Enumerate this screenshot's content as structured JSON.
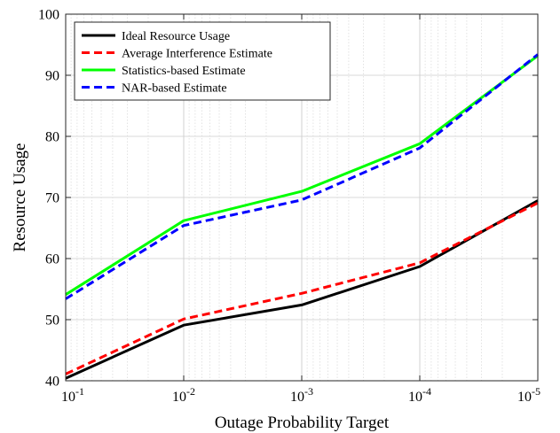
{
  "chart_data": {
    "type": "line",
    "title": "",
    "xlabel": "Outage Probability Target",
    "ylabel": "Resource Usage",
    "x_scale": "log-reversed",
    "x": [
      0.1,
      0.01,
      0.001,
      0.0001,
      1e-05
    ],
    "x_tick_labels": [
      {
        "base": "10",
        "exp": "-1"
      },
      {
        "base": "10",
        "exp": "-2"
      },
      {
        "base": "10",
        "exp": "-3"
      },
      {
        "base": "10",
        "exp": "-4"
      },
      {
        "base": "10",
        "exp": "-5"
      }
    ],
    "ylim": [
      40,
      100
    ],
    "y_ticks": [
      40,
      50,
      60,
      70,
      80,
      90,
      100
    ],
    "grid": true,
    "legend_position": "top-left",
    "series": [
      {
        "name": "Ideal Resource Usage",
        "color": "#000000",
        "dash": "solid",
        "values": [
          40.4,
          49.1,
          52.4,
          58.7,
          69.5
        ]
      },
      {
        "name": "Average Interference Estimate",
        "color": "#ff0000",
        "dash": "dashed",
        "values": [
          41.1,
          50.1,
          54.3,
          59.3,
          69.1
        ]
      },
      {
        "name": "Statistics-based Estimate",
        "color": "#00ff00",
        "dash": "solid",
        "values": [
          54.1,
          66.2,
          71.0,
          78.8,
          93.2
        ]
      },
      {
        "name": "NAR-based Estimate",
        "color": "#0000ff",
        "dash": "dashed",
        "values": [
          53.4,
          65.4,
          69.6,
          78.1,
          93.4
        ]
      }
    ]
  }
}
